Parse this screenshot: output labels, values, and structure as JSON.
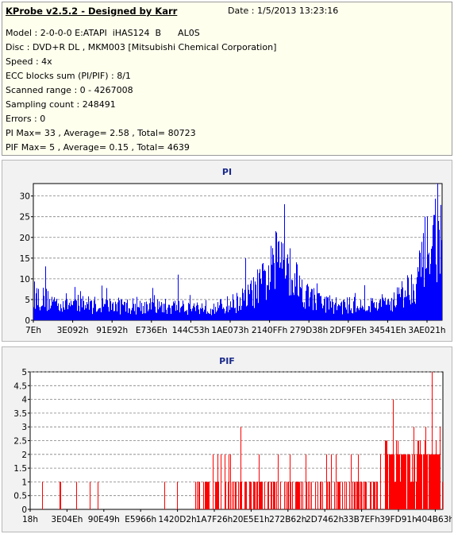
{
  "header": {
    "title": "KProbe v2.5.2 - Designed by Karr",
    "date": "Date : 1/5/2013 13:23:16",
    "lines": [
      "Model : 2-0-0-0 E:ATAPI  iHAS124  B      AL0S",
      "Disc : DVD+R DL , MKM003 [Mitsubishi Chemical Corporation]",
      "Speed : 4x",
      "ECC blocks sum (PI/PIF) : 8/1",
      "Scanned range : 0 - 4267008",
      "Sampling count : 248491",
      "Errors : 0",
      "PI Max= 33 , Average= 2.58 , Total= 80723",
      "PIF Max= 5 , Average= 0.15 , Total= 4639"
    ]
  },
  "colors": {
    "pi": "#0000ff",
    "pif": "#ff0000",
    "plot_bg": "#ffffff",
    "grid": "#808080"
  },
  "chart_data": [
    {
      "type": "bar",
      "title": "PI",
      "ylim": [
        0,
        33
      ],
      "yticks": [
        0,
        5,
        10,
        15,
        20,
        25,
        30
      ],
      "xtick_labels": [
        "7Eh",
        "3E092h",
        "91E92h",
        "E736Eh",
        "144C53h",
        "1AE073h",
        "2140FFh",
        "279D38h",
        "2DF9FEh",
        "34541Eh",
        "3AE021h"
      ],
      "grid": true,
      "profile": [
        [
          0,
          7
        ],
        [
          0.02,
          6
        ],
        [
          0.05,
          5
        ],
        [
          0.1,
          4.5
        ],
        [
          0.2,
          4
        ],
        [
          0.3,
          3.8
        ],
        [
          0.45,
          3.5
        ],
        [
          0.5,
          5
        ],
        [
          0.53,
          7
        ],
        [
          0.56,
          10
        ],
        [
          0.58,
          13
        ],
        [
          0.6,
          16
        ],
        [
          0.61,
          21
        ],
        [
          0.62,
          17
        ],
        [
          0.635,
          13
        ],
        [
          0.65,
          10
        ],
        [
          0.67,
          7
        ],
        [
          0.7,
          5
        ],
        [
          0.75,
          4
        ],
        [
          0.8,
          4
        ],
        [
          0.85,
          4.5
        ],
        [
          0.88,
          5.5
        ],
        [
          0.9,
          7
        ],
        [
          0.92,
          9
        ],
        [
          0.94,
          12
        ],
        [
          0.96,
          16
        ],
        [
          0.975,
          22
        ],
        [
          0.99,
          25
        ],
        [
          1.0,
          24
        ]
      ],
      "peaks": [
        [
          0.99,
          33
        ],
        [
          0.615,
          28
        ],
        [
          0.96,
          25
        ],
        [
          0.52,
          15
        ],
        [
          0.03,
          13
        ],
        [
          0.355,
          11
        ]
      ]
    },
    {
      "type": "bar",
      "title": "PIF",
      "ylim": [
        0,
        5
      ],
      "yticks": [
        0,
        0.5,
        1,
        1.5,
        2,
        2.5,
        3,
        3.5,
        4,
        4.5,
        5
      ],
      "xtick_labels": [
        "18h",
        "3E04Eh",
        "90E49h",
        "E5966h",
        "1420D2h",
        "1A7F26h",
        "20E5E1h",
        "272B62h",
        "2D7462h",
        "33B7EFh",
        "39FD91h",
        "404B63h"
      ],
      "grid": true,
      "dense_regions": [
        [
          0.4,
          0.85,
          0.55
        ],
        [
          0.86,
          1.0,
          0.85
        ]
      ],
      "peaks": [
        [
          0.975,
          5
        ],
        [
          0.88,
          4
        ],
        [
          0.93,
          3
        ],
        [
          0.51,
          3
        ],
        [
          0.96,
          3
        ],
        [
          0.995,
          3
        ]
      ]
    }
  ]
}
